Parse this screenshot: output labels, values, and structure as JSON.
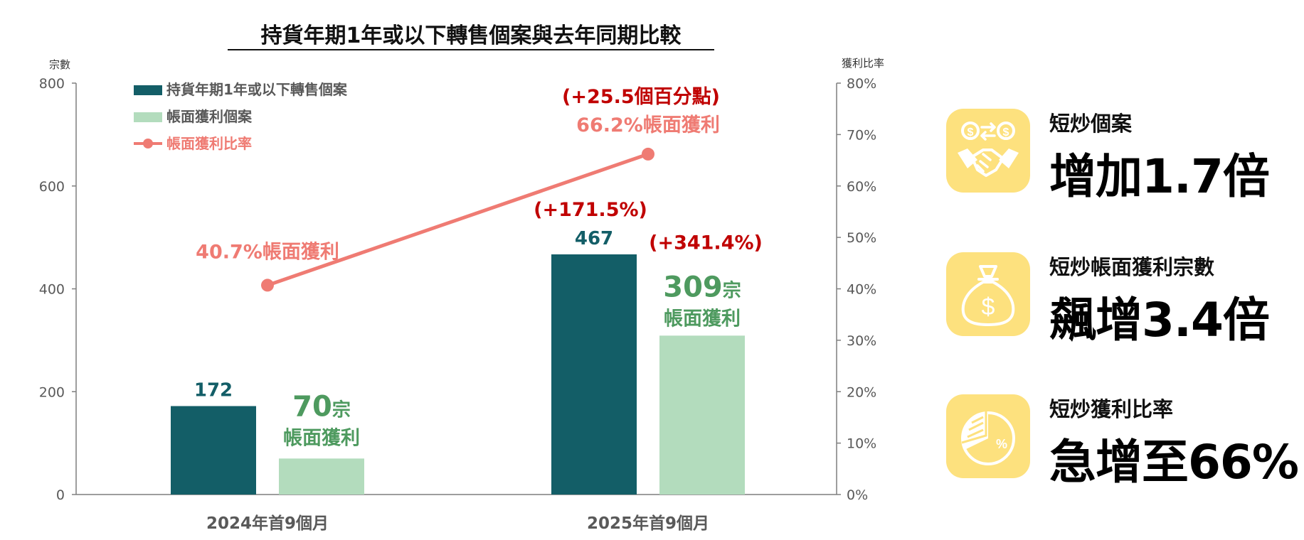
{
  "chart_data": {
    "type": "bar",
    "title": "持貨年期1年或以下轉售個案與去年同期比較",
    "ylabel_left": "宗數",
    "ylabel_right": "獲利比率",
    "ylim_left": [
      0,
      800
    ],
    "ylim_right": [
      0,
      80
    ],
    "left_ticks": [
      "0",
      "200",
      "400",
      "600",
      "800"
    ],
    "right_ticks": [
      "0%",
      "10%",
      "20%",
      "30%",
      "40%",
      "50%",
      "60%",
      "70%",
      "80%"
    ],
    "categories": [
      "2024年首9個月",
      "2025年首9個月"
    ],
    "series": [
      {
        "name": "持貨年期1年或以下轉售個案",
        "type": "bar",
        "axis": "left",
        "color": "#135e67",
        "values": [
          172,
          467
        ],
        "value_labels": [
          "172",
          "467"
        ]
      },
      {
        "name": "帳面獲利個案",
        "type": "bar",
        "axis": "left",
        "color": "#b3dcbd",
        "values": [
          70,
          309
        ]
      },
      {
        "name": "帳面獲利比率",
        "type": "line",
        "axis": "right",
        "color": "#ef7b73",
        "values": [
          40.7,
          66.2
        ]
      }
    ],
    "legend_position": "top-left",
    "annotations": {
      "profit_count_numbers": [
        "70",
        "309"
      ],
      "profit_count_unit": "宗",
      "profit_count_caption": "帳面獲利",
      "rate_labels": [
        "40.7%帳面獲利",
        "66.2%帳面獲利"
      ],
      "change_total": "(+171.5%)",
      "change_profit": "(+341.4%)",
      "change_rate": "(+25.5個百分點)"
    },
    "colors": {
      "dark_bar": "#135e67",
      "light_bar": "#b3dcbd",
      "line": "#ef7b73",
      "change_red": "#c00000",
      "profit_green": "#4e9a5f"
    }
  },
  "cards": [
    {
      "icon": "handshake-money-icon",
      "subtitle": "短炒個案",
      "headline": "增加1.7倍"
    },
    {
      "icon": "money-bag-icon",
      "subtitle": "短炒帳面獲利宗數",
      "headline": "飆增3.4倍"
    },
    {
      "icon": "pie-chart-percent-icon",
      "subtitle": "短炒獲利比率",
      "headline": "急增至66%"
    }
  ]
}
